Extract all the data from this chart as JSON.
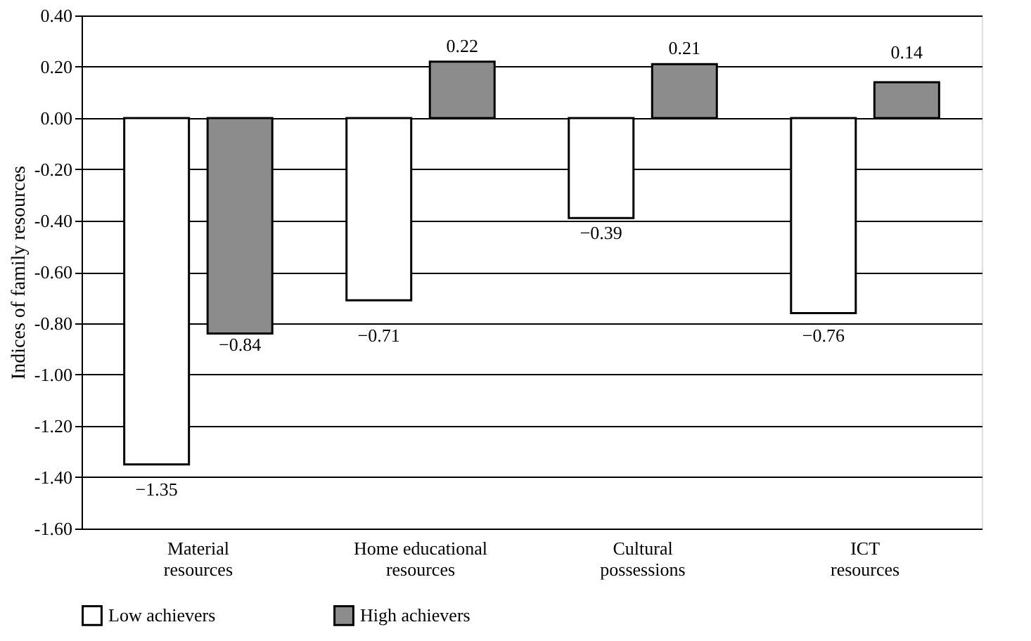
{
  "chart_data": {
    "type": "bar",
    "ylabel": "Indices of family resources",
    "categories": [
      "Material\nresources",
      "Home educational\nresources",
      "Cultural\npossessions",
      "ICT\nresources"
    ],
    "series": [
      {
        "name": "Low achievers",
        "color": "#ffffff",
        "values": [
          -1.35,
          -0.71,
          -0.39,
          -0.76
        ],
        "value_labels": [
          "−1.35",
          "−0.71",
          "−0.39",
          "−0.76"
        ]
      },
      {
        "name": "High achievers",
        "color": "#8c8c8c",
        "values": [
          -0.84,
          0.22,
          0.21,
          0.14
        ],
        "value_labels": [
          "−0.84",
          "0.22",
          "0.21",
          "0.14"
        ]
      }
    ],
    "ylim": [
      -1.6,
      0.4
    ],
    "yticks": [
      {
        "value": 0.4,
        "label": "0.40"
      },
      {
        "value": 0.2,
        "label": "0.20"
      },
      {
        "value": 0,
        "label": "0.00"
      },
      {
        "value": -0.2,
        "label": "-0.20"
      },
      {
        "value": -0.4,
        "label": "-0.40"
      },
      {
        "value": -0.6,
        "label": "-0.60"
      },
      {
        "value": -0.8,
        "label": "-0.80"
      },
      {
        "value": -1.0,
        "label": "-1.00"
      },
      {
        "value": -1.2,
        "label": "-1.20"
      },
      {
        "value": -1.4,
        "label": "-1.40"
      },
      {
        "value": -1.6,
        "label": "-1.60"
      }
    ],
    "grid": "y",
    "legend": "bottom"
  }
}
